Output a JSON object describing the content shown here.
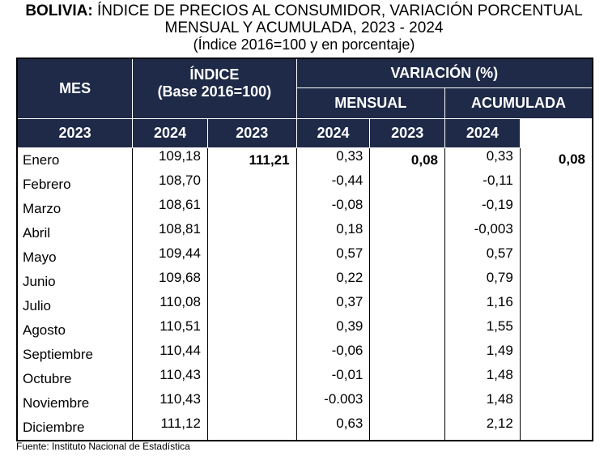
{
  "title": {
    "bold": "BOLIVIA:",
    "line1": "ÍNDICE DE PRECIOS AL CONSUMIDOR, VARIACIÓN PORCENTUAL",
    "line2": "MENSUAL Y ACUMULADA, 2023 - 2024",
    "line3": "(Índice 2016=100 y en porcentaje)"
  },
  "header": {
    "mes": "MES",
    "indice": "ÍNDICE",
    "base": "(Base 2016=100)",
    "variacion": "VARIACIÓN (%)",
    "mensual": "MENSUAL",
    "acumulada": "ACUMULADA",
    "years": [
      "2023",
      "2024",
      "2023",
      "2024",
      "2023",
      "2024"
    ]
  },
  "rows": [
    [
      "Enero",
      "109,18",
      "111,21",
      "0,33",
      "0,08",
      "0,33",
      "0,08"
    ],
    [
      "Febrero",
      "108,70",
      "",
      "-0,44",
      "",
      "-0,11",
      ""
    ],
    [
      "Marzo",
      "108,61",
      "",
      "-0,08",
      "",
      "-0,19",
      ""
    ],
    [
      "Abril",
      "108,81",
      "",
      "0,18",
      "",
      "-0,003",
      ""
    ],
    [
      "Mayo",
      "109,44",
      "",
      "0,57",
      "",
      "0,57",
      ""
    ],
    [
      "Junio",
      "109,68",
      "",
      "0,22",
      "",
      "0,79",
      ""
    ],
    [
      "Julio",
      "110,08",
      "",
      "0,37",
      "",
      "1,16",
      ""
    ],
    [
      "Agosto",
      "110,51",
      "",
      "0,39",
      "",
      "1,55",
      ""
    ],
    [
      "Septiembre",
      "110,44",
      "",
      "-0,06",
      "",
      "1,49",
      ""
    ],
    [
      "Octubre",
      "110,43",
      "",
      "-0,01",
      "",
      "1,48",
      ""
    ],
    [
      "Noviembre",
      "110,43",
      "",
      "-0.003",
      "",
      "1,48",
      ""
    ],
    [
      "Diciembre",
      "111,12",
      "",
      "0,63",
      "",
      "2,12",
      ""
    ]
  ],
  "source": "Fuente: Instituto Nacional de Estadística",
  "colors": {
    "header_bg": "#1e2a47"
  }
}
